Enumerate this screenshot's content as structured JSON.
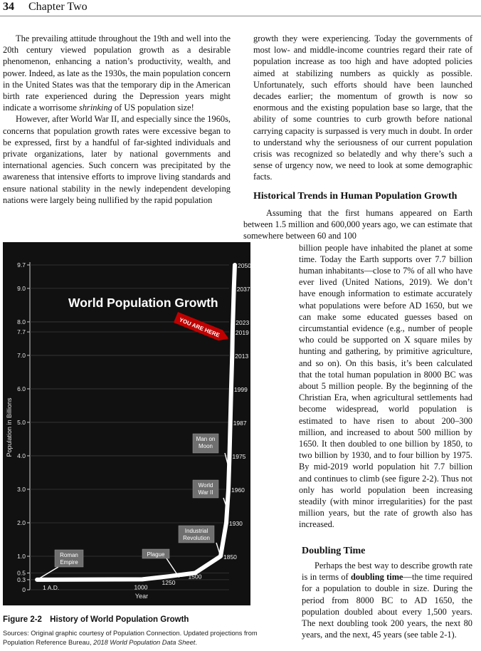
{
  "header": {
    "page_number": "34",
    "chapter": "Chapter Two"
  },
  "left_column": {
    "p1_a": "The prevailing attitude throughout the 19th and well into the 20th century viewed population growth as a desirable phenomenon, enhancing a nation’s productivity, wealth, and power. Indeed, as late as the 1930s, the main population concern in the United States was that the temporary dip in the American birth rate experienced during the Depression years might indicate a worrisome ",
    "p1_italic": "shrinking",
    "p1_b": " of US population size!",
    "p2": "However, after World War II, and especially since the 1960s, concerns that population growth rates were excessive began to be expressed, first by a handful of far-sighted individuals and private organizations, later by national governments and international agencies. Such concern was precipitated by the awareness that intensive efforts to improve living standards and ensure national stability in the newly independent developing nations were largely being nullified by the rapid population"
  },
  "right_column_top": "growth they were experiencing. Today the governments of most low- and middle-income countries regard their rate of population increase as too high and have adopted policies aimed at stabilizing numbers as quickly as possible. Unfortunately, such efforts should have been launched decades earlier; the momentum of growth is now so enormous and the existing population base so large, that the ability of some countries to curb growth before national carrying capacity is surpassed is very much in doubt. In order to understand why the seriousness of our current population crisis was recognized so belatedly and why there’s such a sense of urgency now, we need to look at some demographic facts.",
  "section1": {
    "heading": "Historical Trends in Human Population Growth",
    "first_line": "Assuming that the first humans appeared on Earth between 1.5 million and 600,000 years ago, we can estimate that somewhere between 60 and 100",
    "body": "billion people have inhabited the planet at some time. Today the Earth supports over 7.7 billion human inhabitants—close to 7% of all who have ever lived (United Nations, 2019). We don’t have enough information to estimate accurately what populations were before AD 1650, but we can make some educated guesses based on circumstantial evidence (e.g., number of people who could be supported on X square miles by hunting and gathering, by primitive agriculture, and so on). On this basis, it’s been calculated that the total human population in 8000 BC was about 5 million people. By the beginning of the Christian Era, when agricultural settlements had become widespread, world population is estimated to have risen to about 200–300 million, and increased to about 500 million by 1650. It then doubled to one billion by 1850, to two billion by 1930, and to four billion by 1975. By mid-2019 world population hit 7.7 billion and continues to climb (see figure 2-2). Thus not only has world population been increasing steadily (with minor irregularities) for the past million years, but the rate of growth also has increased."
  },
  "section2": {
    "heading": "Doubling Time",
    "body_a": "Perhaps the best way to describe growth rate is in terms of ",
    "body_bold": "doubling time",
    "body_b": "—the time required for a population to double in size. During the period from 8000 BC to AD 1650, the population doubled about every 1,500 years. The next doubling took 200 years, the next 80 years, and the next, 45 years (see table 2-1)."
  },
  "figure": {
    "number": "Figure 2-2",
    "caption": "History of World Population Growth",
    "source_a": "Sources: Original graphic courtesy of Population Connection. Updated projections from Population Reference Bureau, ",
    "source_italic": "2018 World Population Data Sheet",
    "source_b": "."
  },
  "chart_data": {
    "type": "line",
    "title": "World Population Growth",
    "xlabel": "Year",
    "ylabel": "Population in Billions",
    "y_ticks": [
      "9.7",
      "9.0",
      "8.0",
      "7.7",
      "7.0",
      "6.0",
      "5.0",
      "4.0",
      "3.0",
      "2.0",
      "1.0",
      "0.5",
      "0.3",
      "0"
    ],
    "series": [
      {
        "points": [
          {
            "x": 1,
            "y": 0.3,
            "label": "1 A.D."
          },
          {
            "x": 1000,
            "y": 0.31,
            "label": "1000"
          },
          {
            "x": 1250,
            "y": 0.4,
            "label": "1250"
          },
          {
            "x": 1500,
            "y": 0.5,
            "label": "1500"
          },
          {
            "x": 1850,
            "y": 1.0,
            "label": "1850"
          },
          {
            "x": 1930,
            "y": 2.0,
            "label": "1930"
          },
          {
            "x": 1960,
            "y": 3.0,
            "label": "1960"
          },
          {
            "x": 1975,
            "y": 4.0,
            "label": "1975"
          },
          {
            "x": 1987,
            "y": 5.0,
            "label": "1987"
          },
          {
            "x": 1999,
            "y": 6.0,
            "label": "1999"
          },
          {
            "x": 2013,
            "y": 7.0,
            "label": "2013"
          },
          {
            "x": 2019,
            "y": 7.7,
            "label": "2019"
          },
          {
            "x": 2023,
            "y": 8.0,
            "label": "2023"
          },
          {
            "x": 2037,
            "y": 9.0,
            "label": "2037"
          },
          {
            "x": 2050,
            "y": 9.7,
            "label": "2050"
          }
        ]
      }
    ],
    "annotations": [
      {
        "text": "Roman Empire",
        "year": 1,
        "y": 0.3
      },
      {
        "text": "Plague",
        "year": 1350,
        "y": 0.37
      },
      {
        "text": "Industrial Revolution",
        "year": 1850,
        "y": 1.0
      },
      {
        "text": "World War II",
        "year": 1945,
        "y": 2.4
      },
      {
        "text": "Man on Moon",
        "year": 1969,
        "y": 3.6
      },
      {
        "text": "YOU ARE HERE",
        "year": 2019,
        "y": 7.7
      }
    ],
    "colors": {
      "background": "#111111",
      "line": "#ffffff",
      "label_box": "#6f6f6f",
      "you_are_here": "#c00000"
    }
  }
}
